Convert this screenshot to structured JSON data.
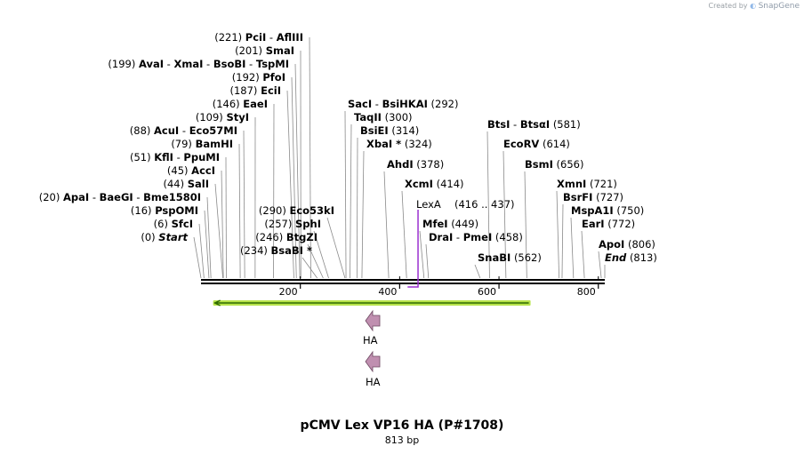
{
  "credit": {
    "prefix": "Created by",
    "brand": "SnapGene"
  },
  "map": {
    "title": "pCMV Lex VP16 HA (P#1708)",
    "length_label": "813 bp",
    "length_bp": 813,
    "ticks": [
      "200",
      "400",
      "600",
      "800"
    ],
    "tick_values": [
      200,
      400,
      600,
      800
    ]
  },
  "left_sites": [
    {
      "pos": "(221)",
      "names": [
        "PciI",
        "AflIII"
      ],
      "cut": 221
    },
    {
      "pos": "(201)",
      "names": [
        "SmaI"
      ],
      "cut": 201
    },
    {
      "pos": "(199)",
      "names": [
        "AvaI",
        "XmaI",
        "BsoBI",
        "TspMI"
      ],
      "cut": 199
    },
    {
      "pos": "(192)",
      "names": [
        "PfoI"
      ],
      "cut": 192
    },
    {
      "pos": "(187)",
      "names": [
        "EciI"
      ],
      "cut": 187
    },
    {
      "pos": "(146)",
      "names": [
        "EaeI"
      ],
      "cut": 146
    },
    {
      "pos": "(109)",
      "names": [
        "StyI"
      ],
      "cut": 109
    },
    {
      "pos": "(88)",
      "names": [
        "AcuI",
        "Eco57MI"
      ],
      "cut": 88
    },
    {
      "pos": "(79)",
      "names": [
        "BamHI"
      ],
      "cut": 79
    },
    {
      "pos": "(51)",
      "names": [
        "KflI",
        "PpuMI"
      ],
      "cut": 51
    },
    {
      "pos": "(45)",
      "names": [
        "AccI"
      ],
      "cut": 45
    },
    {
      "pos": "(44)",
      "names": [
        "SalI"
      ],
      "cut": 44
    },
    {
      "pos": "(20)",
      "names": [
        "ApaI",
        "BaeGI",
        "Bme1580I"
      ],
      "cut": 20
    },
    {
      "pos": "(16)",
      "names": [
        "PspOMI"
      ],
      "cut": 16
    },
    {
      "pos": "(6)",
      "names": [
        "SfcI"
      ],
      "cut": 6
    },
    {
      "pos": "(0)",
      "names": [
        "Start"
      ],
      "cut": 0,
      "italic": true
    }
  ],
  "mid_sites": [
    {
      "pos": "(290)",
      "names": [
        "Eco53kI"
      ],
      "cut": 290
    },
    {
      "pos": "(257)",
      "names": [
        "SphI"
      ],
      "cut": 257
    },
    {
      "pos": "(246)",
      "names": [
        "BtgZI"
      ],
      "cut": 246
    },
    {
      "pos": "(234)",
      "names": [
        "BsaBI"
      ],
      "star": "*",
      "cut": 234
    }
  ],
  "center_sites": [
    {
      "pos": "(292)",
      "names": [
        "SacI",
        "BsiHKAI"
      ],
      "cut": 292
    },
    {
      "pos": "(300)",
      "names": [
        "TaqII"
      ],
      "cut": 300
    },
    {
      "pos": "(314)",
      "names": [
        "BsiEI"
      ],
      "cut": 314
    },
    {
      "pos": "(324)",
      "names": [
        "XbaI"
      ],
      "star": "*",
      "cut": 324
    },
    {
      "pos": "(378)",
      "names": [
        "AhdI"
      ],
      "cut": 378
    },
    {
      "pos": "(414)",
      "names": [
        "XcmI"
      ],
      "cut": 414
    },
    {
      "pos": "(449)",
      "names": [
        "MfeI"
      ],
      "cut": 449
    },
    {
      "pos": "(458)",
      "names": [
        "DraI",
        "PmeI"
      ],
      "cut": 458
    },
    {
      "pos": "(562)",
      "names": [
        "SnaBI"
      ],
      "cut": 562,
      "label_first": true
    }
  ],
  "right_sites": [
    {
      "pos": "(581)",
      "names": [
        "BtsI",
        "BtsαI"
      ],
      "cut": 581
    },
    {
      "pos": "(614)",
      "names": [
        "EcoRV"
      ],
      "cut": 614
    },
    {
      "pos": "(656)",
      "names": [
        "BsmI"
      ],
      "cut": 656
    },
    {
      "pos": "(721)",
      "names": [
        "XmnI"
      ],
      "cut": 721
    },
    {
      "pos": "(727)",
      "names": [
        "BsrFI"
      ],
      "cut": 727
    },
    {
      "pos": "(750)",
      "names": [
        "MspA1I"
      ],
      "cut": 750
    },
    {
      "pos": "(772)",
      "names": [
        "EarI"
      ],
      "cut": 772
    },
    {
      "pos": "(806)",
      "names": [
        "ApoI"
      ],
      "cut": 806
    },
    {
      "pos": "(813)",
      "names": [
        "End"
      ],
      "cut": 813,
      "italic": true
    }
  ],
  "features": {
    "lexa": {
      "name": "LexA",
      "range": "(416 .. 437)",
      "start": 416,
      "end": 437,
      "color": "#9b30d0"
    },
    "orf": {
      "start": 28,
      "end": 660,
      "direction": "reverse",
      "fill": "#b7e34a",
      "line": "#2f6b00"
    },
    "ha": [
      {
        "label": "HA",
        "color": "#c08fb0",
        "stroke": "#6e4a62"
      },
      {
        "label": "HA",
        "color": "#c08fb0",
        "stroke": "#6e4a62"
      }
    ]
  }
}
